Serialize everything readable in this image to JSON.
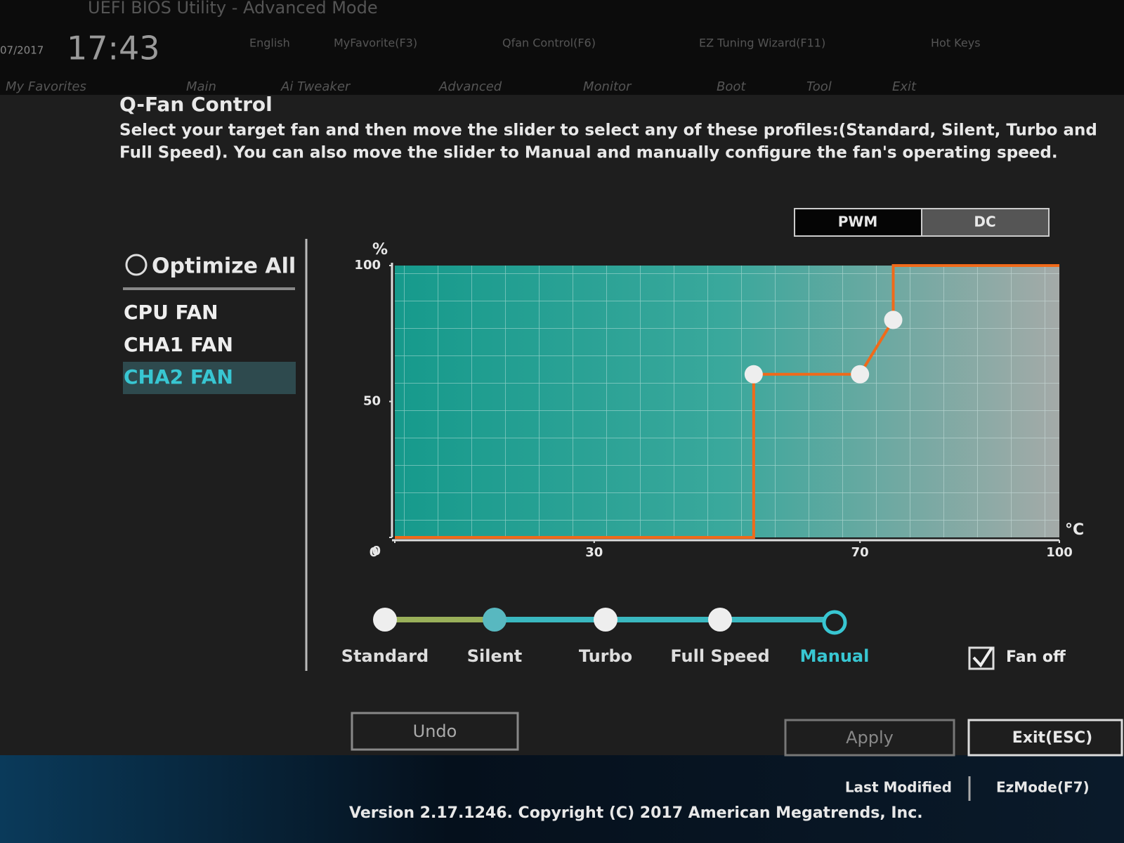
{
  "header": {
    "brand": "UEFI BIOS Utility - Advanced Mode",
    "date": "07/2017",
    "time": "17:43",
    "tools": [
      "English",
      "MyFavorite(F3)",
      "Qfan Control(F6)",
      "EZ Tuning Wizard(F11)",
      "Hot Keys"
    ],
    "tabs": [
      "My Favorites",
      "Main",
      "Ai Tweaker",
      "Advanced",
      "Monitor",
      "Boot",
      "Tool",
      "Exit"
    ]
  },
  "dialog": {
    "title": "Q-Fan Control",
    "description": [
      "Select your target fan and then move the slider to select any of these profiles:(Standard, Silent, Turbo and",
      "Full Speed). You can also move the slider to Manual and manually configure the fan's operating speed."
    ],
    "optimize_all": "Optimize All",
    "fans": [
      "CPU FAN",
      "CHA1 FAN",
      "CHA2 FAN"
    ],
    "selected_fan": 2,
    "modes": [
      "PWM",
      "DC"
    ],
    "selected_mode": 0,
    "fan_curve": {
      "type": "line",
      "y_label": "%",
      "x_label": "°C",
      "xlim": [
        0,
        100
      ],
      "ylim": [
        0,
        100
      ],
      "xticks": [
        0,
        30,
        70,
        100
      ],
      "yticks": [
        0,
        50,
        100
      ],
      "x": [
        0,
        54,
        54,
        70,
        75,
        75,
        100
      ],
      "values": [
        0,
        0,
        60,
        60,
        80,
        100,
        100
      ],
      "color": "#f06a1a",
      "points": {
        "x": [
          54,
          70,
          75
        ],
        "values": [
          60,
          60,
          80
        ]
      }
    },
    "profiles": [
      "Standard",
      "Silent",
      "Turbo",
      "Full Speed",
      "Manual"
    ],
    "selected_profile": 4,
    "fan_off": "Fan off",
    "fan_off_checked": true,
    "buttons": {
      "undo": "Undo",
      "apply": "Apply",
      "exit": "Exit(ESC)"
    }
  },
  "footer": {
    "last_modified": "Last Modified",
    "ez_mode": "EzMode(F7)",
    "version": "Version 2.17.1246. Copyright (C) 2017 American Megatrends, Inc."
  }
}
